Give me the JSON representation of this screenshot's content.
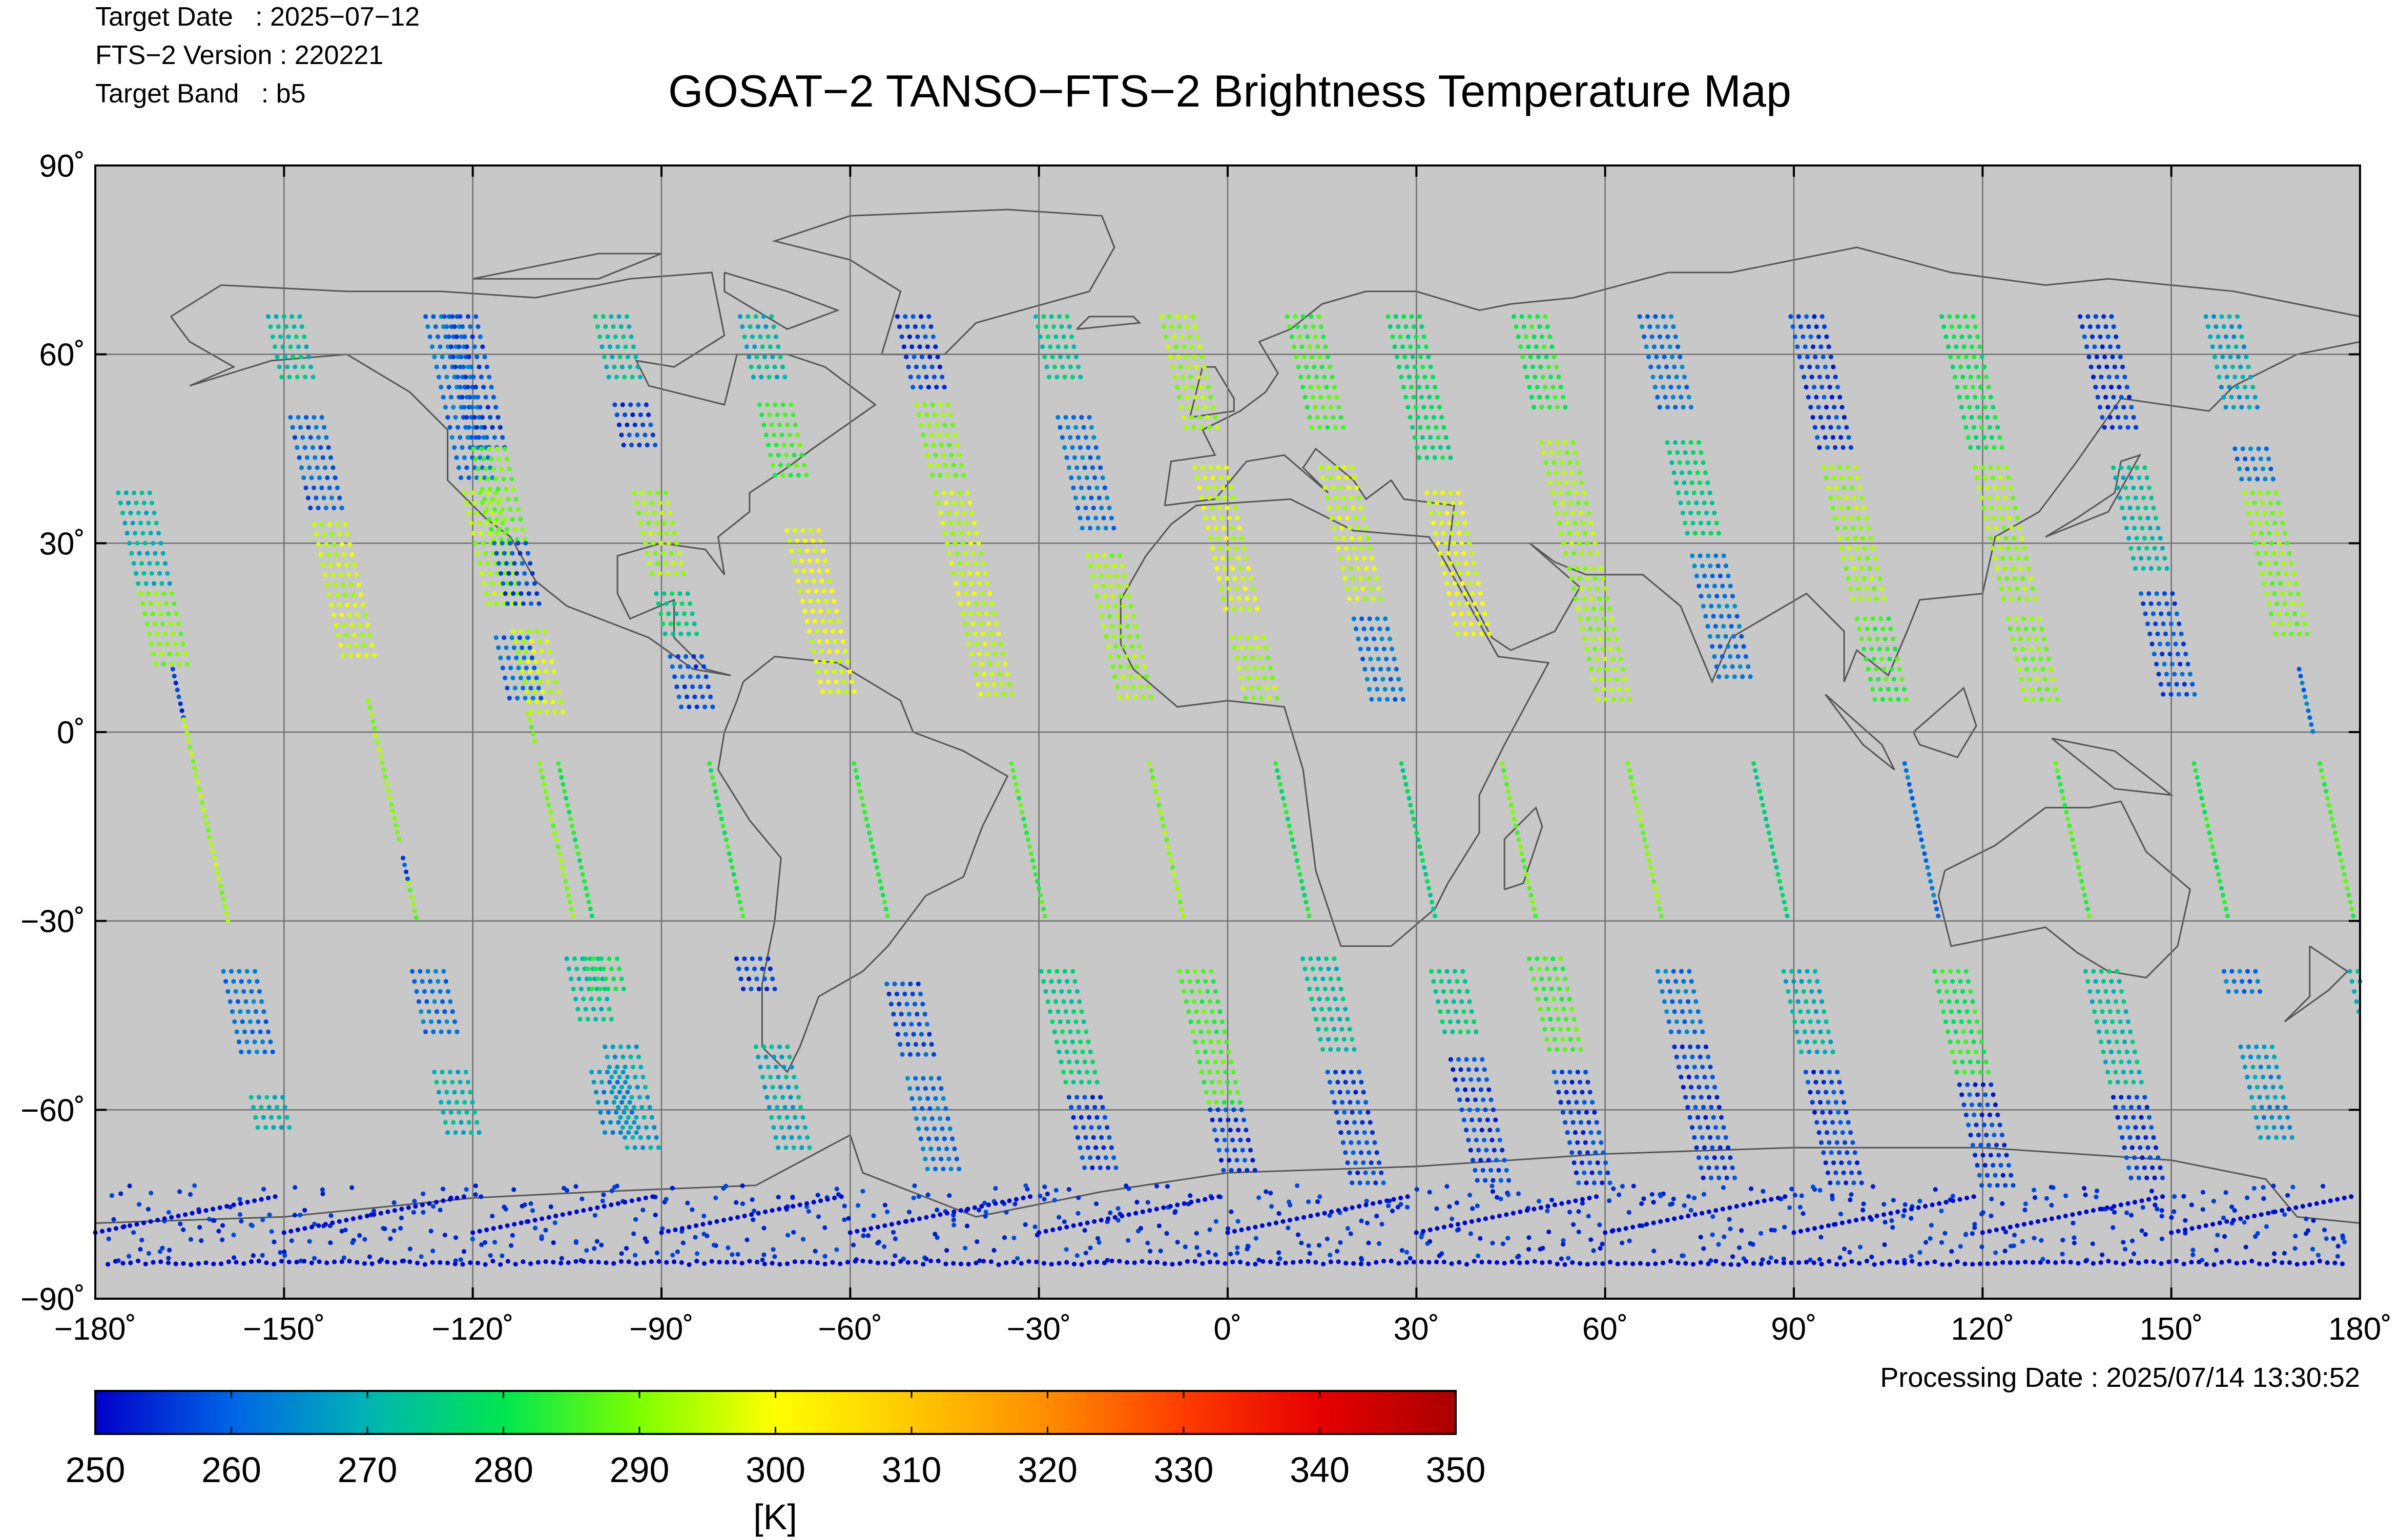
{
  "header": {
    "meta_lines": [
      "Target Date   : 2025−07−12",
      "FTS−2 Version : 220221",
      "Target Band   : b5"
    ],
    "title": "GOSAT−2 TANSO−FTS−2 Brightness Temperature Map"
  },
  "footer": {
    "processing_date": "Processing Date : 2025/07/14 13:30:52"
  },
  "map": {
    "background_color": "#c8c8c8",
    "grid_color": "#707070",
    "coastline_color": "#555555",
    "lon_ticks": [
      "−180˚",
      "−150˚",
      "−120˚",
      "−90˚",
      "−60˚",
      "−30˚",
      "0˚",
      "30˚",
      "60˚",
      "90˚",
      "120˚",
      "150˚",
      "180˚"
    ],
    "lat_ticks": [
      "90˚",
      "60˚",
      "30˚",
      "0˚",
      "−30˚",
      "−60˚",
      "−90˚"
    ],
    "lon_range": [
      -180,
      180
    ],
    "lat_range": [
      -90,
      90
    ]
  },
  "colorbar": {
    "ticks": [
      "250",
      "260",
      "270",
      "280",
      "290",
      "300",
      "310",
      "320",
      "330",
      "340",
      "350"
    ],
    "unit_label": "[K]",
    "colors": [
      "#0000c8",
      "#0064e6",
      "#00b4b4",
      "#00e650",
      "#7dff00",
      "#ffff00",
      "#ffc800",
      "#ff8c00",
      "#ff3c00",
      "#e60000",
      "#aa0000"
    ]
  },
  "chart_data": {
    "type": "scatter",
    "title": "GOSAT−2 TANSO−FTS−2 Brightness Temperature Map",
    "xlim": [
      -180,
      180
    ],
    "ylim": [
      -90,
      90
    ],
    "value_range": [
      250,
      350
    ],
    "value_unit": "K",
    "tracks": [
      {
        "lon_start": -180,
        "segments": [
          [
            38,
            22,
            270
          ],
          [
            22,
            10,
            290
          ],
          [
            10,
            2,
            255
          ],
          [
            2,
            -30,
            292
          ],
          [
            -38,
            -52,
            262
          ],
          [
            -58,
            -64,
            270
          ]
        ]
      },
      {
        "lon_start": -150,
        "segments": [
          [
            66,
            55,
            272
          ],
          [
            50,
            35,
            260
          ],
          [
            33,
            12,
            295
          ],
          [
            5,
            -18,
            292
          ],
          [
            -20,
            -24,
            258
          ],
          [
            -24,
            -30,
            290
          ],
          [
            -38,
            -48,
            262
          ],
          [
            -54,
            -64,
            270
          ]
        ]
      },
      {
        "lon_start": -125,
        "segments": [
          [
            66,
            40,
            262
          ],
          [
            38,
            20,
            292
          ],
          [
            15,
            5,
            260
          ],
          [
            3,
            -2,
            290
          ],
          [
            -5,
            -30,
            290
          ],
          [
            -36,
            -46,
            272
          ],
          [
            -54,
            -65,
            265
          ]
        ]
      },
      {
        "lon_start": -122,
        "segments": [
          [
            66,
            45,
            258
          ],
          [
            45,
            30,
            288
          ],
          [
            30,
            20,
            258
          ],
          [
            16,
            2,
            295
          ],
          [
            -5,
            -30,
            282
          ],
          [
            -36,
            -42,
            280
          ],
          [
            -50,
            -66,
            268
          ]
        ]
      },
      {
        "lon_start": -98,
        "segments": [
          [
            66,
            55,
            272
          ],
          [
            52,
            44,
            256
          ],
          [
            38,
            25,
            292
          ],
          [
            22,
            14,
            276
          ],
          [
            12,
            3,
            258
          ],
          [
            -5,
            -30,
            282
          ],
          [
            -36,
            -42,
            256
          ],
          [
            -50,
            -66,
            270
          ]
        ]
      },
      {
        "lon_start": -75,
        "segments": [
          [
            66,
            55,
            270
          ],
          [
            52,
            40,
            285
          ],
          [
            32,
            5,
            298
          ],
          [
            -5,
            -30,
            282
          ],
          [
            -40,
            -52,
            258
          ],
          [
            -55,
            -70,
            262
          ]
        ]
      },
      {
        "lon_start": -50,
        "segments": [
          [
            66,
            54,
            256
          ],
          [
            52,
            40,
            290
          ],
          [
            38,
            5,
            295
          ],
          [
            -5,
            -30,
            285
          ],
          [
            -38,
            -56,
            275
          ],
          [
            -58,
            -70,
            256
          ]
        ]
      },
      {
        "lon_start": -28,
        "segments": [
          [
            66,
            55,
            274
          ],
          [
            50,
            32,
            262
          ],
          [
            28,
            5,
            292
          ],
          [
            -5,
            -30,
            290
          ],
          [
            -38,
            -60,
            285
          ],
          [
            -60,
            -70,
            256
          ]
        ]
      },
      {
        "lon_start": -8,
        "segments": [
          [
            66,
            48,
            292
          ],
          [
            42,
            18,
            296
          ],
          [
            15,
            5,
            292
          ],
          [
            -5,
            -30,
            280
          ],
          [
            -36,
            -52,
            272
          ],
          [
            -54,
            -72,
            256
          ]
        ]
      },
      {
        "lon_start": 12,
        "segments": [
          [
            66,
            48,
            285
          ],
          [
            42,
            20,
            295
          ],
          [
            18,
            5,
            262
          ],
          [
            -5,
            -30,
            276
          ],
          [
            -38,
            -48,
            275
          ],
          [
            -52,
            -72,
            256
          ]
        ]
      },
      {
        "lon_start": 28,
        "segments": [
          [
            66,
            42,
            278
          ],
          [
            38,
            15,
            298
          ],
          [
            -5,
            -30,
            288
          ],
          [
            -36,
            -52,
            285
          ],
          [
            -54,
            -72,
            256
          ]
        ]
      },
      {
        "lon_start": 48,
        "segments": [
          [
            66,
            50,
            282
          ],
          [
            46,
            28,
            292
          ],
          [
            26,
            5,
            292
          ],
          [
            -5,
            -30,
            290
          ],
          [
            -38,
            -48,
            262
          ],
          [
            -50,
            -72,
            256
          ]
        ]
      },
      {
        "lon_start": 68,
        "segments": [
          [
            66,
            50,
            262
          ],
          [
            46,
            30,
            275
          ],
          [
            28,
            8,
            262
          ],
          [
            -5,
            -30,
            276
          ],
          [
            -38,
            -52,
            270
          ],
          [
            -54,
            -72,
            256
          ]
        ]
      },
      {
        "lon_start": 92,
        "segments": [
          [
            66,
            44,
            256
          ],
          [
            42,
            20,
            292
          ],
          [
            18,
            5,
            285
          ],
          [
            -5,
            -30,
            262
          ],
          [
            -38,
            -55,
            282
          ],
          [
            -56,
            -72,
            256
          ]
        ]
      },
      {
        "lon_start": 116,
        "segments": [
          [
            66,
            44,
            280
          ],
          [
            42,
            20,
            292
          ],
          [
            18,
            5,
            290
          ],
          [
            -5,
            -30,
            285
          ],
          [
            -38,
            -56,
            272
          ],
          [
            -58,
            -72,
            256
          ]
        ]
      },
      {
        "lon_start": 138,
        "segments": [
          [
            66,
            48,
            256
          ],
          [
            42,
            25,
            272
          ],
          [
            22,
            5,
            258
          ],
          [
            -5,
            -30,
            282
          ],
          [
            -38,
            -42,
            262
          ],
          [
            -50,
            -65,
            266
          ]
        ]
      },
      {
        "lon_start": 158,
        "segments": [
          [
            66,
            50,
            268
          ],
          [
            45,
            40,
            262
          ],
          [
            38,
            15,
            290
          ],
          [
            10,
            0,
            262
          ],
          [
            -5,
            -30,
            285
          ],
          [
            -38,
            -46,
            270
          ],
          [
            -50,
            -64,
            262
          ]
        ]
      }
    ]
  }
}
